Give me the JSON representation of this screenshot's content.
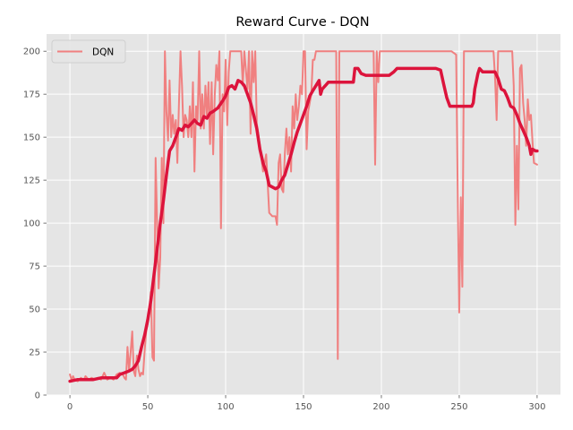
{
  "chart_data": {
    "type": "line",
    "title": "Reward Curve - DQN",
    "xlabel": "",
    "ylabel": "",
    "xlim": [
      -15,
      315
    ],
    "ylim": [
      0,
      210
    ],
    "x_ticks": [
      0,
      50,
      100,
      150,
      200,
      250,
      300
    ],
    "y_ticks": [
      0,
      25,
      50,
      75,
      100,
      125,
      150,
      175,
      200
    ],
    "grid": true,
    "legend_position": "top-left",
    "legend": [
      "DQN"
    ],
    "colors": {
      "raw": "#f08080",
      "smoothed": "#dc143c",
      "background": "#e5e5e5",
      "grid": "#ffffff"
    },
    "series": [
      {
        "name": "DQN",
        "style": "raw",
        "points": [
          [
            0,
            12
          ],
          [
            1,
            9
          ],
          [
            2,
            11
          ],
          [
            3,
            9
          ],
          [
            5,
            8
          ],
          [
            7,
            10
          ],
          [
            9,
            9
          ],
          [
            10,
            11
          ],
          [
            12,
            9
          ],
          [
            14,
            10
          ],
          [
            16,
            9
          ],
          [
            18,
            10
          ],
          [
            20,
            9
          ],
          [
            22,
            13
          ],
          [
            24,
            9
          ],
          [
            26,
            10
          ],
          [
            28,
            9
          ],
          [
            30,
            12
          ],
          [
            32,
            13
          ],
          [
            34,
            12
          ],
          [
            35,
            10
          ],
          [
            36,
            9
          ],
          [
            37,
            28
          ],
          [
            38,
            14
          ],
          [
            39,
            25
          ],
          [
            40,
            37
          ],
          [
            41,
            14
          ],
          [
            42,
            11
          ],
          [
            43,
            23
          ],
          [
            44,
            15
          ],
          [
            45,
            11
          ],
          [
            46,
            13
          ],
          [
            47,
            12
          ],
          [
            48,
            26
          ],
          [
            49,
            37
          ],
          [
            50,
            42
          ],
          [
            51,
            48
          ],
          [
            52,
            60
          ],
          [
            53,
            22
          ],
          [
            54,
            20
          ],
          [
            55,
            138
          ],
          [
            56,
            100
          ],
          [
            57,
            62
          ],
          [
            58,
            80
          ],
          [
            59,
            138
          ],
          [
            60,
            100
          ],
          [
            61,
            200
          ],
          [
            62,
            165
          ],
          [
            63,
            148
          ],
          [
            64,
            183
          ],
          [
            65,
            150
          ],
          [
            66,
            163
          ],
          [
            67,
            152
          ],
          [
            68,
            160
          ],
          [
            69,
            135
          ],
          [
            70,
            168
          ],
          [
            71,
            200
          ],
          [
            72,
            180
          ],
          [
            73,
            150
          ],
          [
            74,
            163
          ],
          [
            75,
            160
          ],
          [
            76,
            150
          ],
          [
            77,
            168
          ],
          [
            78,
            150
          ],
          [
            79,
            182
          ],
          [
            80,
            130
          ],
          [
            81,
            168
          ],
          [
            82,
            160
          ],
          [
            83,
            200
          ],
          [
            84,
            155
          ],
          [
            85,
            175
          ],
          [
            86,
            155
          ],
          [
            87,
            180
          ],
          [
            88,
            162
          ],
          [
            89,
            182
          ],
          [
            90,
            146
          ],
          [
            91,
            182
          ],
          [
            92,
            140
          ],
          [
            93,
            175
          ],
          [
            94,
            192
          ],
          [
            95,
            183
          ],
          [
            96,
            200
          ],
          [
            97,
            97
          ],
          [
            98,
            175
          ],
          [
            99,
            165
          ],
          [
            100,
            195
          ],
          [
            101,
            157
          ],
          [
            102,
            188
          ],
          [
            103,
            200
          ],
          [
            104,
            200
          ],
          [
            105,
            200
          ],
          [
            108,
            200
          ],
          [
            110,
            200
          ],
          [
            111,
            180
          ],
          [
            112,
            200
          ],
          [
            114,
            178
          ],
          [
            115,
            200
          ],
          [
            116,
            152
          ],
          [
            117,
            200
          ],
          [
            118,
            182
          ],
          [
            119,
            200
          ],
          [
            120,
            158
          ],
          [
            122,
            145
          ],
          [
            124,
            130
          ],
          [
            126,
            140
          ],
          [
            128,
            106
          ],
          [
            130,
            104
          ],
          [
            132,
            104
          ],
          [
            133,
            99
          ],
          [
            134,
            135
          ],
          [
            135,
            140
          ],
          [
            136,
            120
          ],
          [
            137,
            118
          ],
          [
            138,
            140
          ],
          [
            139,
            155
          ],
          [
            140,
            140
          ],
          [
            141,
            150
          ],
          [
            142,
            130
          ],
          [
            143,
            168
          ],
          [
            144,
            155
          ],
          [
            145,
            175
          ],
          [
            146,
            160
          ],
          [
            147,
            168
          ],
          [
            148,
            180
          ],
          [
            149,
            175
          ],
          [
            150,
            200
          ],
          [
            151,
            200
          ],
          [
            152,
            143
          ],
          [
            153,
            165
          ],
          [
            155,
            175
          ],
          [
            156,
            195
          ],
          [
            157,
            195
          ],
          [
            158,
            200
          ],
          [
            160,
            200
          ],
          [
            165,
            200
          ],
          [
            170,
            200
          ],
          [
            171,
            200
          ],
          [
            172,
            21
          ],
          [
            173,
            200
          ],
          [
            175,
            200
          ],
          [
            180,
            200
          ],
          [
            185,
            200
          ],
          [
            190,
            200
          ],
          [
            195,
            200
          ],
          [
            196,
            134
          ],
          [
            197,
            200
          ],
          [
            198,
            182
          ],
          [
            199,
            200
          ],
          [
            205,
            200
          ],
          [
            210,
            200
          ],
          [
            215,
            200
          ],
          [
            220,
            200
          ],
          [
            225,
            200
          ],
          [
            230,
            200
          ],
          [
            235,
            200
          ],
          [
            240,
            200
          ],
          [
            245,
            200
          ],
          [
            248,
            198
          ],
          [
            249,
            120
          ],
          [
            250,
            48
          ],
          [
            251,
            115
          ],
          [
            252,
            63
          ],
          [
            253,
            200
          ],
          [
            255,
            200
          ],
          [
            260,
            200
          ],
          [
            265,
            200
          ],
          [
            270,
            200
          ],
          [
            272,
            200
          ],
          [
            273,
            185
          ],
          [
            274,
            160
          ],
          [
            275,
            200
          ],
          [
            277,
            200
          ],
          [
            280,
            200
          ],
          [
            284,
            200
          ],
          [
            285,
            180
          ],
          [
            286,
            99
          ],
          [
            287,
            145
          ],
          [
            288,
            108
          ],
          [
            289,
            190
          ],
          [
            290,
            192
          ],
          [
            291,
            170
          ],
          [
            292,
            160
          ],
          [
            293,
            145
          ],
          [
            294,
            172
          ],
          [
            295,
            160
          ],
          [
            296,
            163
          ],
          [
            297,
            148
          ],
          [
            298,
            135
          ],
          [
            300,
            134
          ]
        ]
      },
      {
        "name": "",
        "style": "smoothed",
        "points": [
          [
            0,
            8
          ],
          [
            5,
            9
          ],
          [
            10,
            9
          ],
          [
            15,
            9
          ],
          [
            20,
            10
          ],
          [
            25,
            10
          ],
          [
            30,
            10
          ],
          [
            32,
            12
          ],
          [
            35,
            13
          ],
          [
            38,
            14
          ],
          [
            40,
            15
          ],
          [
            42,
            17
          ],
          [
            44,
            20
          ],
          [
            46,
            28
          ],
          [
            48,
            35
          ],
          [
            50,
            44
          ],
          [
            52,
            55
          ],
          [
            54,
            70
          ],
          [
            56,
            85
          ],
          [
            58,
            100
          ],
          [
            60,
            113
          ],
          [
            62,
            128
          ],
          [
            64,
            142
          ],
          [
            66,
            145
          ],
          [
            68,
            150
          ],
          [
            70,
            155
          ],
          [
            72,
            154
          ],
          [
            74,
            157
          ],
          [
            76,
            156
          ],
          [
            78,
            158
          ],
          [
            80,
            160
          ],
          [
            82,
            158
          ],
          [
            84,
            157
          ],
          [
            86,
            162
          ],
          [
            88,
            161
          ],
          [
            90,
            164
          ],
          [
            92,
            165
          ],
          [
            95,
            167
          ],
          [
            98,
            171
          ],
          [
            100,
            174
          ],
          [
            102,
            179
          ],
          [
            104,
            180
          ],
          [
            106,
            178
          ],
          [
            108,
            183
          ],
          [
            110,
            182
          ],
          [
            112,
            180
          ],
          [
            114,
            175
          ],
          [
            116,
            170
          ],
          [
            118,
            163
          ],
          [
            120,
            155
          ],
          [
            122,
            143
          ],
          [
            124,
            135
          ],
          [
            126,
            130
          ],
          [
            128,
            122
          ],
          [
            130,
            121
          ],
          [
            132,
            120
          ],
          [
            134,
            121
          ],
          [
            136,
            125
          ],
          [
            138,
            128
          ],
          [
            140,
            134
          ],
          [
            142,
            140
          ],
          [
            144,
            147
          ],
          [
            146,
            153
          ],
          [
            148,
            158
          ],
          [
            150,
            163
          ],
          [
            152,
            168
          ],
          [
            154,
            174
          ],
          [
            156,
            177
          ],
          [
            158,
            180
          ],
          [
            160,
            183
          ],
          [
            161,
            175
          ],
          [
            162,
            178
          ],
          [
            164,
            180
          ],
          [
            166,
            182
          ],
          [
            168,
            182
          ],
          [
            170,
            182
          ],
          [
            175,
            182
          ],
          [
            180,
            182
          ],
          [
            182,
            182
          ],
          [
            183,
            190
          ],
          [
            185,
            190
          ],
          [
            187,
            187
          ],
          [
            190,
            186
          ],
          [
            195,
            186
          ],
          [
            200,
            186
          ],
          [
            205,
            186
          ],
          [
            208,
            188
          ],
          [
            210,
            190
          ],
          [
            215,
            190
          ],
          [
            220,
            190
          ],
          [
            225,
            190
          ],
          [
            230,
            190
          ],
          [
            235,
            190
          ],
          [
            238,
            189
          ],
          [
            240,
            181
          ],
          [
            242,
            173
          ],
          [
            244,
            168
          ],
          [
            246,
            168
          ],
          [
            250,
            168
          ],
          [
            255,
            168
          ],
          [
            258,
            168
          ],
          [
            259,
            170
          ],
          [
            260,
            178
          ],
          [
            262,
            187
          ],
          [
            263,
            190
          ],
          [
            265,
            188
          ],
          [
            268,
            188
          ],
          [
            270,
            188
          ],
          [
            273,
            188
          ],
          [
            275,
            184
          ],
          [
            277,
            178
          ],
          [
            279,
            177
          ],
          [
            281,
            173
          ],
          [
            283,
            168
          ],
          [
            285,
            167
          ],
          [
            287,
            163
          ],
          [
            289,
            158
          ],
          [
            291,
            154
          ],
          [
            293,
            150
          ],
          [
            295,
            145
          ],
          [
            296,
            140
          ],
          [
            297,
            143
          ],
          [
            299,
            142
          ],
          [
            300,
            142
          ]
        ]
      }
    ]
  }
}
